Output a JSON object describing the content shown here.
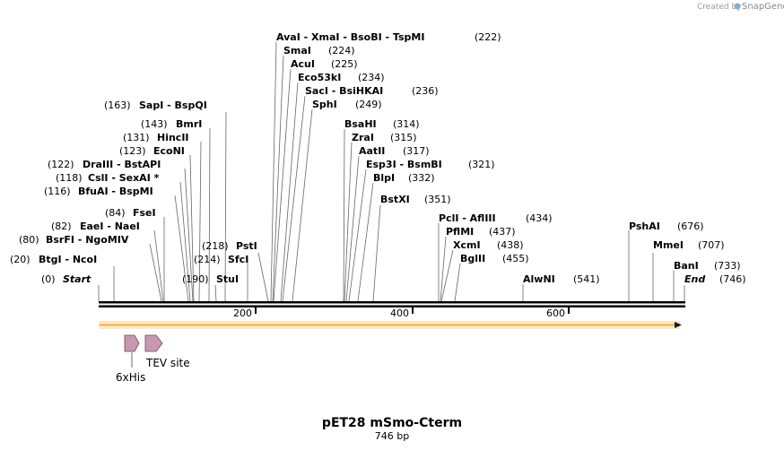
{
  "credit": {
    "prefix": "Created by",
    "brand": "SnapGene"
  },
  "title": "pET28 mSmo-Cterm",
  "length_label": "746 bp",
  "ticks": [
    "200",
    "400",
    "600"
  ],
  "sites": [
    {
      "id": "start",
      "name": "Start",
      "pos": "(0)"
    },
    {
      "id": "btgi",
      "name": "BtgI  -  NcoI",
      "pos": "(20)"
    },
    {
      "id": "bsrfi",
      "name": "BsrFI  -  NgoMIV",
      "pos": "(80)"
    },
    {
      "id": "eaei",
      "name": "EaeI  -  NaeI",
      "pos": "(82)"
    },
    {
      "id": "fsei",
      "name": "FseI",
      "pos": "(84)"
    },
    {
      "id": "bfuai",
      "name": "BfuAI  -  BspMI",
      "pos": "(116)"
    },
    {
      "id": "csli",
      "name": "CslI  -  SexAI *",
      "pos": "(118)"
    },
    {
      "id": "draiii",
      "name": "DraIII  -  BstAPI",
      "pos": "(122)"
    },
    {
      "id": "econi",
      "name": "EcoNI",
      "pos": "(123)"
    },
    {
      "id": "hincii",
      "name": "HincII",
      "pos": "(131)"
    },
    {
      "id": "bmri",
      "name": "BmrI",
      "pos": "(143)"
    },
    {
      "id": "sapi",
      "name": "SapI  -  BspQI",
      "pos": "(163)"
    },
    {
      "id": "stui",
      "name": "StuI",
      "pos": "(190)"
    },
    {
      "id": "sfci",
      "name": "SfcI",
      "pos": "(214)"
    },
    {
      "id": "psti",
      "name": "PstI",
      "pos": "(218)"
    },
    {
      "id": "avai",
      "name": "AvaI  -  XmaI  -  BsoBI  -  TspMI",
      "pos": "(222)"
    },
    {
      "id": "smai",
      "name": "SmaI",
      "pos": "(224)"
    },
    {
      "id": "acui",
      "name": "AcuI",
      "pos": "(225)"
    },
    {
      "id": "eco53ki",
      "name": "Eco53kI",
      "pos": "(234)"
    },
    {
      "id": "saci",
      "name": "SacI  -  BsiHKAI",
      "pos": "(236)"
    },
    {
      "id": "sphi",
      "name": "SphI",
      "pos": "(249)"
    },
    {
      "id": "bsahi",
      "name": "BsaHI",
      "pos": "(314)"
    },
    {
      "id": "zrai",
      "name": "ZraI",
      "pos": "(315)"
    },
    {
      "id": "aatii",
      "name": "AatII",
      "pos": "(317)"
    },
    {
      "id": "esp3i",
      "name": "Esp3I  -  BsmBI",
      "pos": "(321)"
    },
    {
      "id": "blpi",
      "name": "BlpI",
      "pos": "(332)"
    },
    {
      "id": "bstxi",
      "name": "BstXI",
      "pos": "(351)"
    },
    {
      "id": "pcli",
      "name": "PclI  -  AflIII",
      "pos": "(434)"
    },
    {
      "id": "pflmi",
      "name": "PflMI",
      "pos": "(437)"
    },
    {
      "id": "xcmi",
      "name": "XcmI",
      "pos": "(438)"
    },
    {
      "id": "bglii",
      "name": "BglII",
      "pos": "(455)"
    },
    {
      "id": "alwni",
      "name": "AlwNI",
      "pos": "(541)"
    },
    {
      "id": "pshai",
      "name": "PshAI",
      "pos": "(676)"
    },
    {
      "id": "mmei",
      "name": "MmeI",
      "pos": "(707)"
    },
    {
      "id": "bani",
      "name": "BanI",
      "pos": "(733)"
    },
    {
      "id": "end",
      "name": "End",
      "pos": "(746)"
    }
  ],
  "features": [
    {
      "name": "6xHis",
      "color": "#c898b0"
    },
    {
      "name": "TEV site",
      "color": "#c898b0"
    }
  ],
  "colors": {
    "orf": "#f2a31a",
    "backbone": "#000000"
  }
}
